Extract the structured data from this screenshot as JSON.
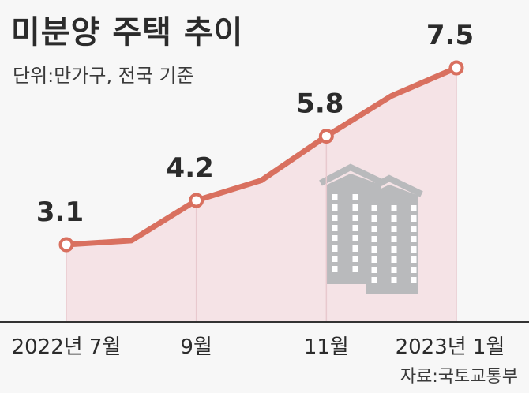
{
  "chart_data": {
    "type": "area",
    "title": "미분양 주택 추이",
    "subtitle": "단위:만가구, 전국 기준",
    "source": "자료:국토교통부",
    "points": [
      {
        "x": "2022-07",
        "y": 3.1
      },
      {
        "x": "2022-08",
        "y": 3.2
      },
      {
        "x": "2022-09",
        "y": 4.2
      },
      {
        "x": "2022-10",
        "y": 4.7
      },
      {
        "x": "2022-11",
        "y": 5.8
      },
      {
        "x": "2022-12",
        "y": 6.8
      },
      {
        "x": "2023-01",
        "y": 7.5
      }
    ],
    "data_labels": [
      {
        "x": "2022-07",
        "text": "3.1"
      },
      {
        "x": "2022-09",
        "text": "4.2"
      },
      {
        "x": "2022-11",
        "text": "5.8"
      },
      {
        "x": "2023-01",
        "text": "7.5"
      }
    ],
    "x_ticks": [
      {
        "x": "2022-07",
        "label": "2022년 7월"
      },
      {
        "x": "2022-09",
        "label": "9월"
      },
      {
        "x": "2022-11",
        "label": "11월"
      },
      {
        "x": "2023-01",
        "label": "2023년 1월"
      }
    ],
    "ylim": [
      0,
      8
    ],
    "grid": false,
    "legend": "none",
    "colors": {
      "line": "#d9705f",
      "area": "#f5e3e6",
      "marker_fill": "#ffffff",
      "axis": "#333333",
      "building": "#b9babc"
    },
    "decoration_icon": "apartment-buildings-icon"
  }
}
